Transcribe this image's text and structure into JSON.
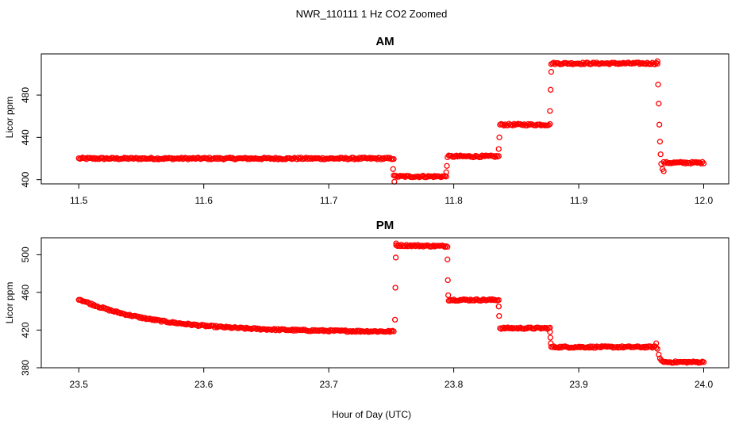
{
  "chart_data": {
    "title": "NWR_110111  1 Hz CO2 Zoomed",
    "xlabel": "Hour of Day (UTC)",
    "marker_color": "#ff0000",
    "panels": [
      {
        "type": "scatter",
        "title": "AM",
        "ylabel": "Licor ppm",
        "xlim": [
          11.47,
          12.02
        ],
        "ylim": [
          396,
          519
        ],
        "x_ticks": [
          11.5,
          11.6,
          11.7,
          11.8,
          11.9,
          12.0
        ],
        "x_tick_labels": [
          "11.5",
          "11.6",
          "11.7",
          "11.8",
          "11.9",
          "12.0"
        ],
        "y_ticks": [
          400,
          440,
          480
        ],
        "y_tick_labels": [
          "400",
          "440",
          "480"
        ],
        "series_name": "CO2",
        "segments": [
          {
            "x0": 11.5,
            "x1": 11.752,
            "y0": 420,
            "y1": 420
          },
          {
            "x0": 11.753,
            "x1": 11.794,
            "y0": 403,
            "y1": 403
          },
          {
            "x0": 11.795,
            "x1": 11.836,
            "y0": 422,
            "y1": 422
          },
          {
            "x0": 11.837,
            "x1": 11.877,
            "y0": 452,
            "y1": 452
          },
          {
            "x0": 11.878,
            "x1": 11.963,
            "y0": 510,
            "y1": 510
          },
          {
            "x0": 11.968,
            "x1": 12.0,
            "y0": 416,
            "y1": 416
          }
        ],
        "transitions": [
          {
            "x": 11.7515,
            "y": 410
          },
          {
            "x": 11.752,
            "y": 404
          },
          {
            "x": 11.7525,
            "y": 398
          },
          {
            "x": 11.794,
            "y": 407
          },
          {
            "x": 11.7945,
            "y": 413
          },
          {
            "x": 11.836,
            "y": 429
          },
          {
            "x": 11.8365,
            "y": 440
          },
          {
            "x": 11.877,
            "y": 465
          },
          {
            "x": 11.8775,
            "y": 485
          },
          {
            "x": 11.878,
            "y": 502
          },
          {
            "x": 11.963,
            "y": 512
          },
          {
            "x": 11.9635,
            "y": 490
          },
          {
            "x": 11.964,
            "y": 472
          },
          {
            "x": 11.9645,
            "y": 452
          },
          {
            "x": 11.965,
            "y": 436
          },
          {
            "x": 11.9655,
            "y": 424
          },
          {
            "x": 11.966,
            "y": 415
          },
          {
            "x": 11.967,
            "y": 410
          },
          {
            "x": 11.968,
            "y": 408
          }
        ]
      },
      {
        "type": "scatter",
        "title": "PM",
        "ylabel": "Licor ppm",
        "xlim": [
          23.47,
          24.02
        ],
        "ylim": [
          380,
          518
        ],
        "x_ticks": [
          23.5,
          23.6,
          23.7,
          23.8,
          23.9,
          24.0
        ],
        "x_tick_labels": [
          "23.5",
          "23.6",
          "23.7",
          "23.8",
          "23.9",
          "24.0"
        ],
        "y_ticks": [
          380,
          420,
          460,
          500
        ],
        "y_tick_labels": [
          "380",
          "420",
          "460",
          "500"
        ],
        "series_name": "CO2",
        "decay": {
          "x0": 23.5,
          "x1": 23.752,
          "start": 453,
          "end": 418,
          "tau": 0.06
        },
        "segments": [
          {
            "x0": 23.754,
            "x1": 23.795,
            "y0": 510,
            "y1": 509
          },
          {
            "x0": 23.796,
            "x1": 23.836,
            "y0": 452,
            "y1": 452
          },
          {
            "x0": 23.837,
            "x1": 23.877,
            "y0": 422,
            "y1": 422
          },
          {
            "x0": 23.878,
            "x1": 23.962,
            "y0": 402,
            "y1": 402
          },
          {
            "x0": 23.968,
            "x1": 24.0,
            "y0": 386,
            "y1": 386
          }
        ],
        "transitions": [
          {
            "x": 23.753,
            "y": 431
          },
          {
            "x": 23.7533,
            "y": 465
          },
          {
            "x": 23.7536,
            "y": 497
          },
          {
            "x": 23.7539,
            "y": 512
          },
          {
            "x": 23.795,
            "y": 495
          },
          {
            "x": 23.7953,
            "y": 473
          },
          {
            "x": 23.7956,
            "y": 457
          },
          {
            "x": 23.836,
            "y": 445
          },
          {
            "x": 23.8363,
            "y": 435
          },
          {
            "x": 23.877,
            "y": 418
          },
          {
            "x": 23.8773,
            "y": 412
          },
          {
            "x": 23.8776,
            "y": 406
          },
          {
            "x": 23.962,
            "y": 406
          },
          {
            "x": 23.963,
            "y": 400
          },
          {
            "x": 23.964,
            "y": 394
          },
          {
            "x": 23.965,
            "y": 390
          },
          {
            "x": 23.966,
            "y": 388
          },
          {
            "x": 23.967,
            "y": 387
          }
        ]
      }
    ]
  }
}
